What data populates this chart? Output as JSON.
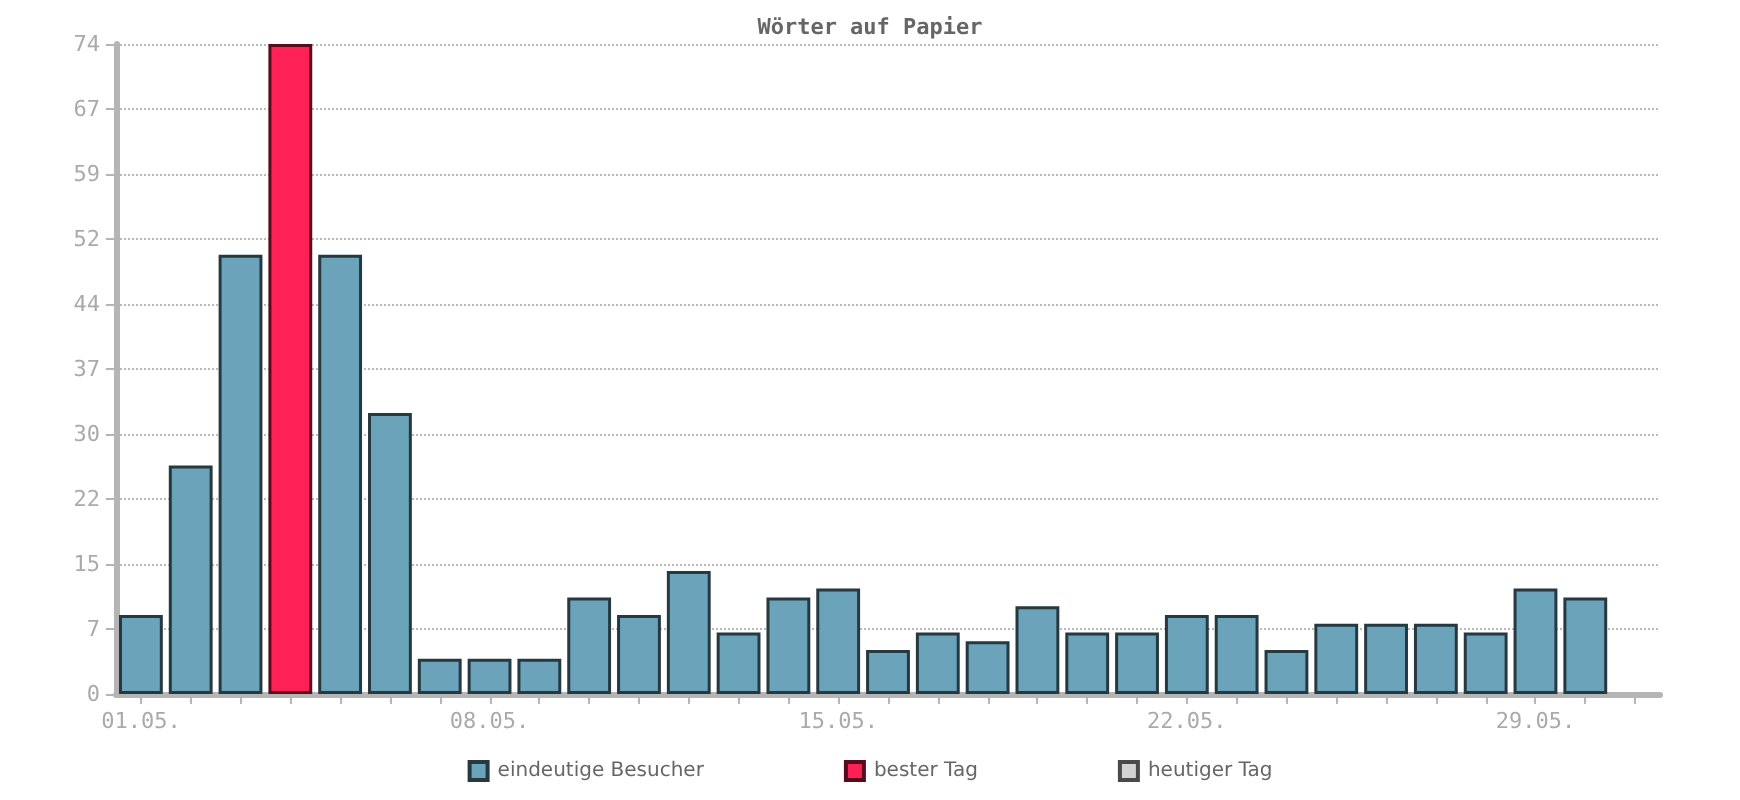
{
  "chart_data": {
    "type": "bar",
    "title": "Wörter auf Papier",
    "categories": [
      "01.05.",
      null,
      null,
      null,
      null,
      null,
      null,
      "08.05.",
      null,
      null,
      null,
      null,
      null,
      null,
      "15.05.",
      null,
      null,
      null,
      null,
      null,
      null,
      "22.05.",
      null,
      null,
      null,
      null,
      null,
      null,
      "29.05.",
      null,
      null
    ],
    "series": [
      {
        "name": "eindeutige Besucher",
        "color": "#6ba3bb",
        "values": [
          9,
          26,
          50,
          null,
          50,
          32,
          4,
          4,
          4,
          11,
          9,
          14,
          7,
          11,
          12,
          5,
          7,
          6,
          10,
          7,
          7,
          9,
          9,
          5,
          8,
          8,
          8,
          7,
          12,
          11,
          null
        ]
      },
      {
        "name": "bester Tag",
        "color": "#ff2056",
        "values": [
          null,
          null,
          null,
          74,
          null,
          null,
          null,
          null,
          null,
          null,
          null,
          null,
          null,
          null,
          null,
          null,
          null,
          null,
          null,
          null,
          null,
          null,
          null,
          null,
          null,
          null,
          null,
          null,
          null,
          null,
          null
        ]
      },
      {
        "name": "heutiger Tag",
        "color": "#d3d3d3",
        "values": [
          null,
          null,
          null,
          null,
          null,
          null,
          null,
          null,
          null,
          null,
          null,
          null,
          null,
          null,
          null,
          null,
          null,
          null,
          null,
          null,
          null,
          null,
          null,
          null,
          null,
          null,
          null,
          null,
          null,
          null,
          0
        ]
      }
    ],
    "ylim": [
      0,
      74
    ],
    "yticks": [
      0,
      {
        "value": 7.4,
        "label": "7"
      },
      {
        "value": 14.8,
        "label": "15"
      },
      {
        "value": 22.2,
        "label": "22"
      },
      {
        "value": 29.6,
        "label": "30"
      },
      37,
      {
        "value": 44.4,
        "label": "44"
      },
      {
        "value": 51.8,
        "label": "52"
      },
      {
        "value": 59.2,
        "label": "59"
      },
      {
        "value": 66.6,
        "label": "67"
      },
      74
    ],
    "grid": "y",
    "legend": "bottom"
  }
}
